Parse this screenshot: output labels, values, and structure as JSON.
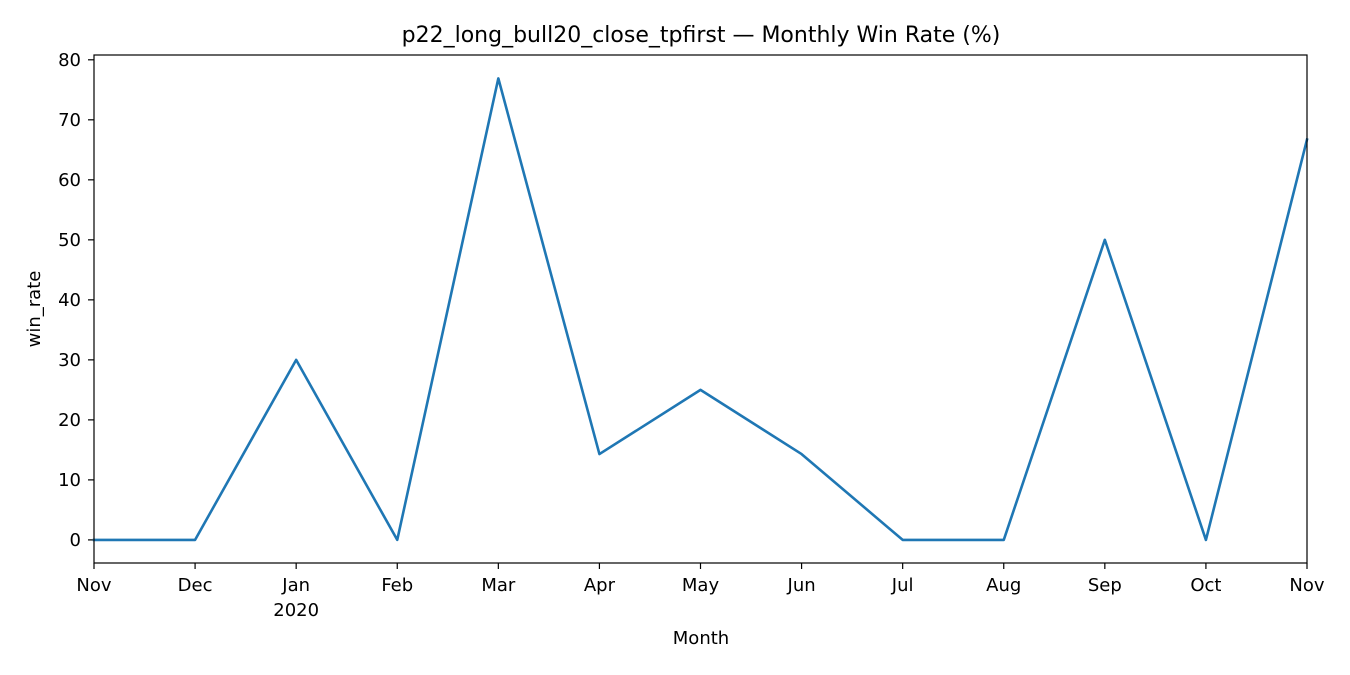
{
  "chart_data": {
    "type": "line",
    "title": "p22_long_bull20_close_tpfirst — Monthly Win Rate (%)",
    "xlabel": "Month",
    "ylabel": "win_rate",
    "x": [
      "2019-11",
      "2019-12",
      "2020-01",
      "2020-02",
      "2020-03",
      "2020-04",
      "2020-05",
      "2020-06",
      "2020-07",
      "2020-08",
      "2020-09",
      "2020-10",
      "2020-11"
    ],
    "x_tick_labels": [
      "Nov",
      "Dec",
      "Jan",
      "Feb",
      "Mar",
      "Apr",
      "May",
      "Jun",
      "Jul",
      "Aug",
      "Sep",
      "Oct",
      "Nov"
    ],
    "x_tick_sublabels": [
      "",
      "",
      "2020",
      "",
      "",
      "",
      "",
      "",
      "",
      "",
      "",
      "",
      ""
    ],
    "series": [
      {
        "values": [
          0,
          0,
          30,
          0,
          76.9,
          14.3,
          25,
          14.3,
          0,
          0,
          50,
          0,
          66.7
        ],
        "color": "#1f77b4"
      }
    ],
    "ylim": [
      -3.85,
      80.8
    ],
    "y_ticks": [
      0,
      10,
      20,
      30,
      40,
      50,
      60,
      70,
      80
    ],
    "grid": false,
    "legend": "none"
  }
}
